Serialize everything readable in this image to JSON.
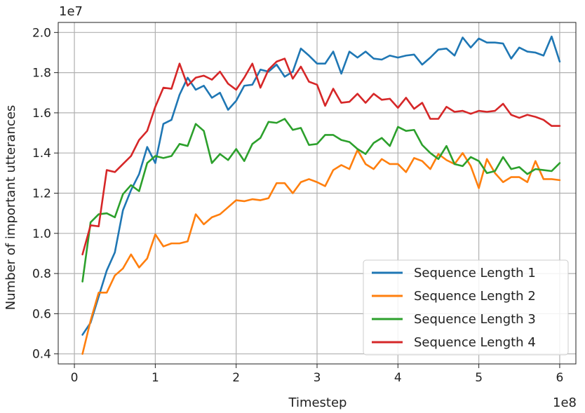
{
  "chart_data": {
    "type": "line",
    "xlabel": "Timestep",
    "ylabel": "Number of important utterances",
    "x_offset_label": "1e8",
    "y_offset_label": "1e7",
    "xlim": [
      -20000000,
      620000000
    ],
    "ylim": [
      3500000,
      20500000
    ],
    "xticks": [
      {
        "value": 0,
        "label": "0"
      },
      {
        "value": 100000000,
        "label": "1"
      },
      {
        "value": 200000000,
        "label": "2"
      },
      {
        "value": 300000000,
        "label": "3"
      },
      {
        "value": 400000000,
        "label": "4"
      },
      {
        "value": 500000000,
        "label": "5"
      },
      {
        "value": 600000000,
        "label": "6"
      }
    ],
    "yticks": [
      {
        "value": 4000000,
        "label": "0.4"
      },
      {
        "value": 6000000,
        "label": "0.6"
      },
      {
        "value": 8000000,
        "label": "0.8"
      },
      {
        "value": 10000000,
        "label": "1.0"
      },
      {
        "value": 12000000,
        "label": "1.2"
      },
      {
        "value": 14000000,
        "label": "1.4"
      },
      {
        "value": 16000000,
        "label": "1.6"
      },
      {
        "value": 18000000,
        "label": "1.8"
      },
      {
        "value": 20000000,
        "label": "2.0"
      }
    ],
    "grid": true,
    "legend_position": "lower-right",
    "x": [
      10000000,
      20000000,
      30000000,
      40000000,
      50000000,
      60000000,
      70000000,
      80000000,
      90000000,
      100000000,
      110000000,
      120000000,
      130000000,
      140000000,
      150000000,
      160000000,
      170000000,
      180000000,
      190000000,
      200000000,
      210000000,
      220000000,
      230000000,
      240000000,
      250000000,
      260000000,
      270000000,
      280000000,
      290000000,
      300000000,
      310000000,
      320000000,
      330000000,
      340000000,
      350000000,
      360000000,
      370000000,
      380000000,
      390000000,
      400000000,
      410000000,
      420000000,
      430000000,
      440000000,
      450000000,
      460000000,
      470000000,
      480000000,
      490000000,
      500000000,
      510000000,
      520000000,
      530000000,
      540000000,
      550000000,
      560000000,
      570000000,
      580000000,
      590000000,
      600000000
    ],
    "series": [
      {
        "name": "Sequence Length 1",
        "color": "#1f77b4",
        "values": [
          4950000,
          5550000,
          6850000,
          8150000,
          9050000,
          11150000,
          12150000,
          12950000,
          14300000,
          13500000,
          15450000,
          15650000,
          16900000,
          17750000,
          17150000,
          17350000,
          16750000,
          17000000,
          16150000,
          16600000,
          17350000,
          17400000,
          18150000,
          18050000,
          18400000,
          17800000,
          18050000,
          19200000,
          18850000,
          18450000,
          18450000,
          19050000,
          17950000,
          19050000,
          18750000,
          19050000,
          18700000,
          18650000,
          18850000,
          18750000,
          18850000,
          18900000,
          18400000,
          18750000,
          19150000,
          19200000,
          18850000,
          19750000,
          19250000,
          19700000,
          19500000,
          19500000,
          19450000,
          18700000,
          19250000,
          19050000,
          19000000,
          18850000,
          19800000,
          18550000
        ]
      },
      {
        "name": "Sequence Length 2",
        "color": "#ff7f0e",
        "values": [
          4000000,
          5650000,
          7050000,
          7050000,
          7900000,
          8250000,
          8950000,
          8300000,
          8750000,
          9950000,
          9350000,
          9500000,
          9500000,
          9600000,
          10950000,
          10450000,
          10800000,
          10950000,
          11300000,
          11650000,
          11600000,
          11700000,
          11650000,
          11750000,
          12500000,
          12500000,
          12000000,
          12550000,
          12700000,
          12550000,
          12350000,
          13150000,
          13400000,
          13200000,
          14150000,
          13450000,
          13200000,
          13700000,
          13450000,
          13450000,
          13050000,
          13750000,
          13600000,
          13200000,
          13950000,
          13650000,
          13450000,
          14000000,
          13350000,
          12250000,
          13700000,
          13000000,
          12550000,
          12800000,
          12800000,
          12550000,
          13600000,
          12700000,
          12700000,
          12650000
        ]
      },
      {
        "name": "Sequence Length 3",
        "color": "#2ca02c",
        "values": [
          7600000,
          10550000,
          10950000,
          11000000,
          10800000,
          11950000,
          12400000,
          12100000,
          13500000,
          13850000,
          13750000,
          13850000,
          14450000,
          14350000,
          15450000,
          15100000,
          13500000,
          13950000,
          13650000,
          14200000,
          13600000,
          14450000,
          14750000,
          15550000,
          15500000,
          15700000,
          15150000,
          15250000,
          14400000,
          14450000,
          14900000,
          14900000,
          14650000,
          14550000,
          14200000,
          13950000,
          14500000,
          14750000,
          14350000,
          15300000,
          15100000,
          15150000,
          14400000,
          14000000,
          13700000,
          14350000,
          13450000,
          13350000,
          13800000,
          13600000,
          13000000,
          13100000,
          13800000,
          13200000,
          13300000,
          12950000,
          13200000,
          13150000,
          13100000,
          13500000
        ]
      },
      {
        "name": "Sequence Length 4",
        "color": "#d62728",
        "values": [
          8950000,
          10400000,
          10350000,
          13150000,
          13050000,
          13450000,
          13850000,
          14650000,
          15100000,
          16300000,
          17250000,
          17200000,
          18450000,
          17350000,
          17750000,
          17850000,
          17650000,
          18050000,
          17450000,
          17150000,
          17750000,
          18450000,
          17250000,
          18150000,
          18550000,
          18700000,
          17700000,
          18300000,
          17550000,
          17400000,
          16350000,
          17200000,
          16500000,
          16550000,
          16950000,
          16500000,
          16950000,
          16650000,
          16700000,
          16250000,
          16750000,
          16200000,
          16500000,
          15700000,
          15700000,
          16300000,
          16050000,
          16100000,
          15950000,
          16100000,
          16050000,
          16100000,
          16450000,
          15900000,
          15750000,
          15900000,
          15800000,
          15650000,
          15350000,
          15350000
        ]
      }
    ]
  }
}
